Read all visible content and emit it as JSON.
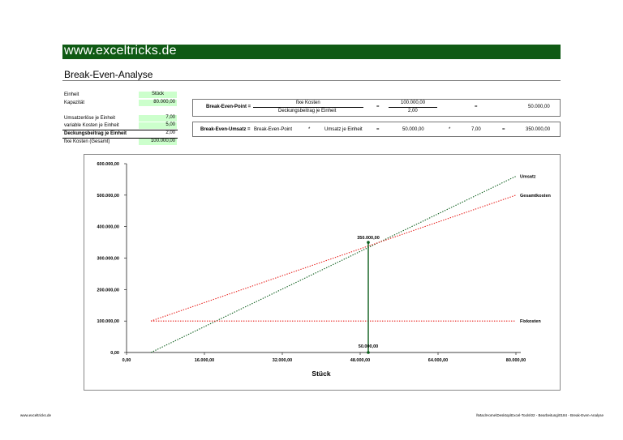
{
  "banner": "www.exceltricks.de",
  "page_title": "Break-Even-Analyse",
  "inputs": [
    {
      "label": "Einheit",
      "value": "Stück"
    },
    {
      "label": "Kapazität",
      "value": "80.000,00"
    },
    {
      "label": "Umsatzerlöse je Einheit",
      "value": "7,00"
    },
    {
      "label": "variable Kosten je Einheit",
      "value": "5,00"
    },
    {
      "label": "Deckungsbeitrag je Einheit",
      "value": "2,00"
    },
    {
      "label": "fixe Kosten (Gesamt)",
      "value": "100.000,00"
    }
  ],
  "bep": {
    "label": "Break-Even-Point =",
    "numerator": "fixe Kosten",
    "denominator": "Deckungsbeitrag je Einheit",
    "eq1": "=",
    "num_value": "100.000,00",
    "den_value": "2,00",
    "eq2": "=",
    "result": "50.000,00"
  },
  "beu": {
    "label": "Break-Even-Umsatz =",
    "term1": "Break-Even-Point",
    "op1": "*",
    "term2": "Umsatz je Einheit",
    "eq1": "=",
    "val1": "50.000,00",
    "op2": "*",
    "val2": "7,00",
    "eq2": "=",
    "result": "350.000,00"
  },
  "colors": {
    "banner": "#0f5a14",
    "input_fill": "#ccffcc",
    "umsatz": "#0a5c1a",
    "kosten": "#e8201c",
    "marker": "#0a5c1a"
  },
  "chart_data": {
    "type": "line",
    "xlabel": "Stück",
    "ylabel": "",
    "xlim": [
      0,
      80000
    ],
    "ylim": [
      0,
      600000
    ],
    "x_ticks": [
      "0,00",
      "16.000,00",
      "32.000,00",
      "48.000,00",
      "64.000,00",
      "80.000,00"
    ],
    "y_ticks": [
      "0,00",
      "100.000,00",
      "200.000,00",
      "300.000,00",
      "400.000,00",
      "500.000,00",
      "600.000,00"
    ],
    "series": [
      {
        "name": "Umsatz",
        "x": [
          0,
          80000
        ],
        "y": [
          0,
          560000
        ],
        "style": "dotted",
        "color": "#0a5c1a"
      },
      {
        "name": "Gesamtkosten",
        "x": [
          0,
          80000
        ],
        "y": [
          100000,
          500000
        ],
        "style": "dotted",
        "color": "#e8201c"
      },
      {
        "name": "Fixkosten",
        "x": [
          0,
          80000
        ],
        "y": [
          100000,
          100000
        ],
        "style": "dotted",
        "color": "#e8201c"
      }
    ],
    "break_even": {
      "x": 50000,
      "y": 350000,
      "label_y": "350.000,00",
      "label_x": "50.000,00"
    },
    "grid": false,
    "legend": "end-of-line labels"
  },
  "footer": {
    "left": "www.exceltricks.de",
    "right": "\\\\Mac\\Home\\Desktop\\Excel-Tools\\02 - Bearbeitung\\0184 - Break-Even-Analyse"
  }
}
